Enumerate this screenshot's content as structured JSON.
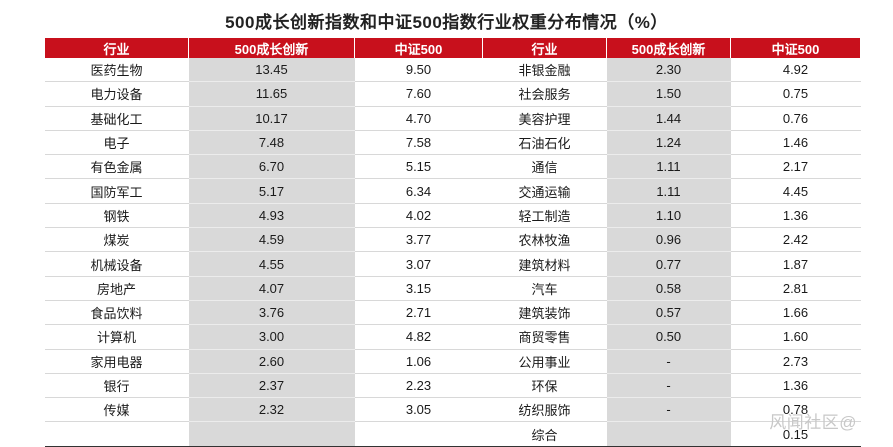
{
  "title": "500成长创新指数和中证500指数行业权重分布情况（%）",
  "headers": [
    "行业",
    "500成长创新",
    "中证500",
    "行业",
    "500成长创新",
    "中证500"
  ],
  "rows": [
    [
      "医药生物",
      "13.45",
      "9.50",
      "非银金融",
      "2.30",
      "4.92"
    ],
    [
      "电力设备",
      "11.65",
      "7.60",
      "社会服务",
      "1.50",
      "0.75"
    ],
    [
      "基础化工",
      "10.17",
      "4.70",
      "美容护理",
      "1.44",
      "0.76"
    ],
    [
      "电子",
      "7.48",
      "7.58",
      "石油石化",
      "1.24",
      "1.46"
    ],
    [
      "有色金属",
      "6.70",
      "5.15",
      "通信",
      "1.11",
      "2.17"
    ],
    [
      "国防军工",
      "5.17",
      "6.34",
      "交通运输",
      "1.11",
      "4.45"
    ],
    [
      "钢铁",
      "4.93",
      "4.02",
      "轻工制造",
      "1.10",
      "1.36"
    ],
    [
      "煤炭",
      "4.59",
      "3.77",
      "农林牧渔",
      "0.96",
      "2.42"
    ],
    [
      "机械设备",
      "4.55",
      "3.07",
      "建筑材料",
      "0.77",
      "1.87"
    ],
    [
      "房地产",
      "4.07",
      "3.15",
      "汽车",
      "0.58",
      "2.81"
    ],
    [
      "食品饮料",
      "3.76",
      "2.71",
      "建筑装饰",
      "0.57",
      "1.66"
    ],
    [
      "计算机",
      "3.00",
      "4.82",
      "商贸零售",
      "0.50",
      "1.60"
    ],
    [
      "家用电器",
      "2.60",
      "1.06",
      "公用事业",
      "-",
      "2.73"
    ],
    [
      "银行",
      "2.37",
      "2.23",
      "环保",
      "-",
      "1.36"
    ],
    [
      "传媒",
      "2.32",
      "3.05",
      "纺织服饰",
      "-",
      "0.78"
    ],
    [
      "",
      "",
      "",
      "综合",
      "",
      "0.15"
    ]
  ],
  "watermark": "风闻社区@",
  "colors": {
    "header_bg": "#c8101c",
    "shade": "#d9d9d9"
  }
}
